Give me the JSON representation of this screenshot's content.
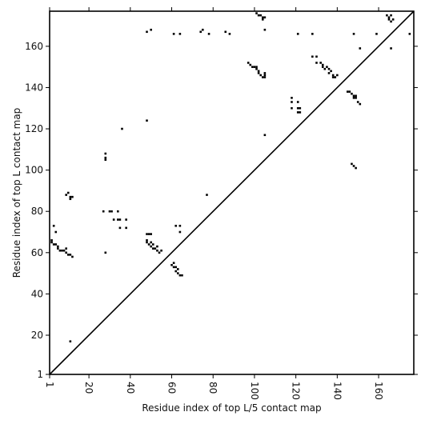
{
  "chart_data": {
    "type": "scatter",
    "title": "",
    "xlabel": "Residue index of top L/5 contact map",
    "ylabel": "Residue index of top L contact map",
    "xlim": [
      1,
      177
    ],
    "ylim": [
      1,
      177
    ],
    "x_ticks": [
      1,
      20,
      40,
      60,
      80,
      100,
      120,
      140,
      160
    ],
    "y_ticks": [
      1,
      20,
      40,
      60,
      80,
      100,
      120,
      140,
      160
    ],
    "grid": false,
    "diagonal": true,
    "marker": "square",
    "color": "#000000",
    "series": [
      {
        "region": "lower-right (top L/5)",
        "points": [
          [
            48,
            167
          ],
          [
            50,
            168
          ],
          [
            61,
            166
          ],
          [
            64,
            166
          ],
          [
            74,
            167
          ],
          [
            75,
            168
          ],
          [
            78,
            166
          ],
          [
            86,
            167
          ],
          [
            88,
            166
          ],
          [
            97,
            152
          ],
          [
            98,
            151
          ],
          [
            99,
            150
          ],
          [
            100,
            150
          ],
          [
            101,
            149
          ],
          [
            101,
            150
          ],
          [
            102,
            148
          ],
          [
            102,
            147
          ],
          [
            103,
            146
          ],
          [
            104,
            145
          ],
          [
            105,
            145
          ],
          [
            105,
            146
          ],
          [
            105,
            147
          ],
          [
            101,
            176
          ],
          [
            102,
            175
          ],
          [
            103,
            175
          ],
          [
            104,
            174
          ],
          [
            105,
            174
          ],
          [
            104,
            173
          ],
          [
            105,
            168
          ],
          [
            121,
            166
          ],
          [
            128,
            166
          ],
          [
            128,
            155
          ],
          [
            130,
            155
          ],
          [
            130,
            152
          ],
          [
            132,
            152
          ],
          [
            133,
            151
          ],
          [
            133,
            150
          ],
          [
            134,
            149
          ],
          [
            135,
            150
          ],
          [
            136,
            149
          ],
          [
            136,
            147
          ],
          [
            137,
            148
          ],
          [
            138,
            146
          ],
          [
            138,
            145
          ],
          [
            139,
            145
          ],
          [
            140,
            146
          ],
          [
            145,
            138
          ],
          [
            146,
            138
          ],
          [
            147,
            137
          ],
          [
            148,
            136
          ],
          [
            148,
            135
          ],
          [
            149,
            135
          ],
          [
            149,
            136
          ],
          [
            150,
            133
          ],
          [
            151,
            132
          ],
          [
            118,
            135
          ],
          [
            118,
            133
          ],
          [
            118,
            130
          ],
          [
            121,
            133
          ],
          [
            121,
            130
          ],
          [
            121,
            128
          ],
          [
            122,
            128
          ],
          [
            122,
            130
          ],
          [
            148,
            166
          ],
          [
            151,
            159
          ],
          [
            159,
            166
          ],
          [
            164,
            175
          ],
          [
            165,
            174
          ],
          [
            165,
            173
          ],
          [
            166,
            172
          ],
          [
            166,
            175
          ],
          [
            167,
            173
          ],
          [
            166,
            159
          ],
          [
            175,
            166
          ],
          [
            105,
            117
          ],
          [
            147,
            103
          ],
          [
            148,
            102
          ],
          [
            149,
            101
          ]
        ]
      },
      {
        "region": "upper-left (top L)",
        "points": [
          [
            48,
            124
          ],
          [
            36,
            120
          ],
          [
            28,
            108
          ],
          [
            28,
            106
          ],
          [
            28,
            105
          ],
          [
            77,
            88
          ],
          [
            9,
            88
          ],
          [
            10,
            89
          ],
          [
            11,
            87
          ],
          [
            11,
            86
          ],
          [
            12,
            87
          ],
          [
            3,
            73
          ],
          [
            27,
            80
          ],
          [
            30,
            80
          ],
          [
            31,
            80
          ],
          [
            34,
            80
          ],
          [
            32,
            76
          ],
          [
            34,
            76
          ],
          [
            35,
            76
          ],
          [
            38,
            76
          ],
          [
            35,
            72
          ],
          [
            38,
            72
          ],
          [
            4,
            70
          ],
          [
            2,
            66
          ],
          [
            2,
            65
          ],
          [
            3,
            64
          ],
          [
            4,
            64
          ],
          [
            5,
            63
          ],
          [
            5,
            62
          ],
          [
            6,
            61
          ],
          [
            7,
            61
          ],
          [
            8,
            61
          ],
          [
            9,
            62
          ],
          [
            9,
            60
          ],
          [
            10,
            59
          ],
          [
            11,
            59
          ],
          [
            12,
            58
          ],
          [
            48,
            69
          ],
          [
            49,
            69
          ],
          [
            50,
            69
          ],
          [
            48,
            66
          ],
          [
            48,
            65
          ],
          [
            49,
            64
          ],
          [
            50,
            65
          ],
          [
            51,
            64
          ],
          [
            50,
            63
          ],
          [
            51,
            62
          ],
          [
            52,
            62
          ],
          [
            53,
            63
          ],
          [
            53,
            61
          ],
          [
            54,
            60
          ],
          [
            55,
            61
          ],
          [
            62,
            73
          ],
          [
            64,
            73
          ],
          [
            64,
            70
          ],
          [
            60,
            54
          ],
          [
            61,
            55
          ],
          [
            61,
            53
          ],
          [
            62,
            53
          ],
          [
            62,
            51
          ],
          [
            63,
            52
          ],
          [
            63,
            50
          ],
          [
            64,
            49
          ],
          [
            65,
            49
          ],
          [
            28,
            60
          ],
          [
            11,
            17
          ]
        ]
      }
    ]
  }
}
